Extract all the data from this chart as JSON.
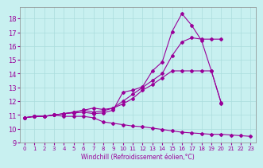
{
  "title": "",
  "xlabel": "Windchill (Refroidissement éolien,°C)",
  "ylabel": "",
  "bg_color": "#c8f0f0",
  "line_color": "#990099",
  "grid_color": "#aadddd",
  "xlim": [
    -0.5,
    23.5
  ],
  "ylim": [
    9,
    18.8
  ],
  "yticks": [
    9,
    10,
    11,
    12,
    13,
    14,
    15,
    16,
    17,
    18
  ],
  "xticks": [
    0,
    1,
    2,
    3,
    4,
    5,
    6,
    7,
    8,
    9,
    10,
    11,
    12,
    13,
    14,
    15,
    16,
    17,
    18,
    19,
    20,
    21,
    22,
    23
  ],
  "series": [
    {
      "x": [
        0,
        1,
        2,
        3,
        4,
        5,
        6,
        7,
        8,
        9,
        10,
        11,
        12,
        13,
        14,
        15,
        16,
        17,
        18,
        19,
        20,
        21,
        22,
        23
      ],
      "y": [
        10.8,
        10.9,
        10.9,
        11.0,
        10.9,
        10.9,
        10.9,
        10.8,
        10.5,
        10.4,
        10.3,
        10.2,
        10.15,
        10.05,
        9.95,
        9.85,
        9.75,
        9.7,
        9.65,
        9.6,
        9.6,
        9.55,
        9.5,
        9.45
      ]
    },
    {
      "x": [
        0,
        1,
        2,
        3,
        4,
        5,
        6,
        7,
        8,
        9,
        10,
        11,
        12,
        13,
        14,
        15,
        16,
        17,
        18,
        19,
        20
      ],
      "y": [
        10.8,
        10.9,
        10.9,
        11.0,
        11.1,
        11.15,
        11.2,
        11.1,
        11.15,
        11.35,
        12.65,
        12.8,
        13.05,
        14.2,
        14.85,
        17.05,
        18.35,
        17.5,
        16.4,
        14.2,
        11.85
      ]
    },
    {
      "x": [
        0,
        1,
        2,
        3,
        4,
        5,
        6,
        7,
        8,
        9,
        10,
        11,
        12,
        13,
        14,
        15,
        16,
        17,
        18,
        19,
        20
      ],
      "y": [
        10.8,
        10.9,
        10.9,
        11.0,
        11.1,
        11.2,
        11.35,
        11.2,
        11.3,
        11.5,
        12.0,
        12.5,
        13.0,
        13.5,
        14.0,
        15.3,
        16.3,
        16.6,
        16.5,
        16.5,
        16.5
      ]
    },
    {
      "x": [
        0,
        1,
        2,
        3,
        4,
        5,
        6,
        7,
        8,
        9,
        10,
        11,
        12,
        13,
        14,
        15,
        16,
        17,
        18,
        19,
        20
      ],
      "y": [
        10.8,
        10.9,
        10.9,
        11.0,
        11.1,
        11.2,
        11.35,
        11.5,
        11.4,
        11.5,
        11.8,
        12.2,
        12.8,
        13.2,
        13.7,
        14.2,
        14.2,
        14.2,
        14.2,
        14.2,
        11.9
      ]
    }
  ]
}
